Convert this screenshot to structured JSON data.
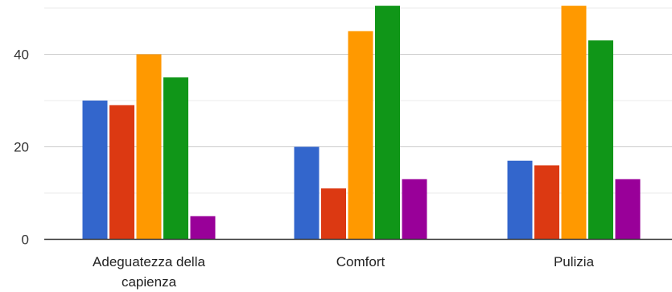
{
  "chart_data": {
    "type": "bar",
    "categories": [
      [
        "Adeguatezza della",
        "capienza"
      ],
      [
        "Comfort"
      ],
      [
        "Pulizia"
      ]
    ],
    "series": [
      {
        "color": "#3366cc",
        "values": [
          30,
          20,
          17
        ]
      },
      {
        "color": "#dc3912",
        "values": [
          29,
          11,
          16
        ]
      },
      {
        "color": "#ff9900",
        "values": [
          40,
          45,
          51
        ]
      },
      {
        "color": "#109618",
        "values": [
          35,
          52,
          43
        ]
      },
      {
        "color": "#990099",
        "values": [
          5,
          13,
          13
        ]
      }
    ],
    "ylim": [
      0,
      50.5
    ],
    "y_ticks": [
      0,
      20,
      40
    ],
    "grid": true,
    "title": "",
    "xlabel": "",
    "ylabel": ""
  }
}
